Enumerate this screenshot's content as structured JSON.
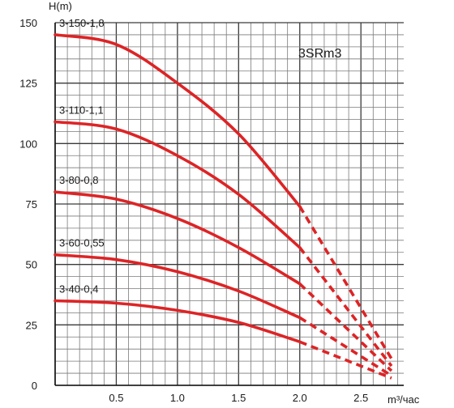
{
  "chart_data": {
    "type": "line",
    "title": "3SRm3",
    "xlabel": "m³/час",
    "ylabel": "H(m)",
    "xlim": [
      0,
      2.85
    ],
    "ylim": [
      0,
      150
    ],
    "x_ticks": [
      "0.5",
      "1.0",
      "1.5",
      "2.0",
      "2.5"
    ],
    "y_ticks": [
      "0",
      "25",
      "50",
      "75",
      "100",
      "125",
      "150"
    ],
    "grid": true,
    "line_color": "#dd2426",
    "series": [
      {
        "name": "3-150-1,8",
        "solid": [
          [
            0,
            145
          ],
          [
            0.5,
            141
          ],
          [
            1.0,
            125
          ],
          [
            1.5,
            104
          ],
          [
            2.0,
            74
          ]
        ],
        "dashed": [
          [
            2.0,
            74
          ],
          [
            2.75,
            11
          ]
        ]
      },
      {
        "name": "3-110-1,1",
        "solid": [
          [
            0,
            109
          ],
          [
            0.5,
            106
          ],
          [
            1.0,
            95
          ],
          [
            1.5,
            79
          ],
          [
            2.0,
            57
          ]
        ],
        "dashed": [
          [
            2.0,
            57
          ],
          [
            2.75,
            8
          ]
        ]
      },
      {
        "name": "3-80-0,8",
        "solid": [
          [
            0,
            80
          ],
          [
            0.5,
            77
          ],
          [
            1.0,
            69
          ],
          [
            1.5,
            57
          ],
          [
            2.0,
            42
          ]
        ],
        "dashed": [
          [
            2.0,
            42
          ],
          [
            2.75,
            6
          ]
        ]
      },
      {
        "name": "3-60-0,55",
        "solid": [
          [
            0,
            54
          ],
          [
            0.5,
            52
          ],
          [
            1.0,
            47
          ],
          [
            1.5,
            39
          ],
          [
            2.0,
            28
          ]
        ],
        "dashed": [
          [
            2.0,
            28
          ],
          [
            2.75,
            4
          ]
        ]
      },
      {
        "name": "3-40-0,4",
        "solid": [
          [
            0,
            35
          ],
          [
            0.5,
            34
          ],
          [
            1.0,
            31
          ],
          [
            1.5,
            26
          ],
          [
            2.0,
            18
          ]
        ],
        "dashed": [
          [
            2.0,
            18
          ],
          [
            2.75,
            3
          ]
        ]
      }
    ]
  }
}
